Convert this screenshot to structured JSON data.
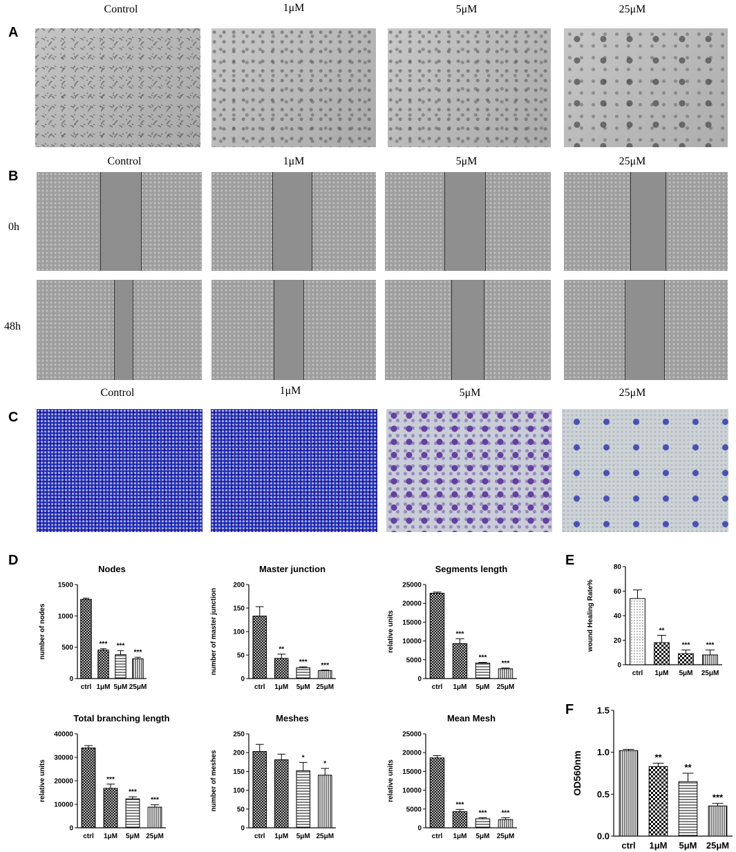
{
  "panels": {
    "A": {
      "letter": "A",
      "columns": [
        "Control",
        "1μM",
        "5μM",
        "25μM"
      ]
    },
    "B": {
      "letter": "B",
      "columns": [
        "Control",
        "1μM",
        "5μM",
        "25μM"
      ],
      "rows": [
        "0h",
        "48h"
      ]
    },
    "C": {
      "letter": "C",
      "columns": [
        "Control",
        "1μM",
        "5μM",
        "25μM"
      ]
    },
    "D": {
      "letter": "D"
    },
    "E": {
      "letter": "E"
    },
    "F": {
      "letter": "F"
    }
  },
  "chart_data": [
    {
      "id": "nodes",
      "type": "bar",
      "title": "Nodes",
      "ylabel": "number of nodes",
      "categories": [
        "ctrl",
        "1μM",
        "5μM",
        "25μM"
      ],
      "values": [
        1265,
        455,
        380,
        315
      ],
      "errors": [
        18,
        22,
        65,
        25
      ],
      "significance": [
        "",
        "***",
        "***",
        "***"
      ],
      "ylim": [
        0,
        1500
      ],
      "yticks": [
        0,
        500,
        1000,
        1500
      ]
    },
    {
      "id": "master-junction",
      "type": "bar",
      "title": "Master junction",
      "ylabel": "number of master junction",
      "categories": [
        "ctrl",
        "1μM",
        "5μM",
        "25μM"
      ],
      "values": [
        133,
        43,
        23,
        17
      ],
      "errors": [
        20,
        9,
        2,
        1
      ],
      "significance": [
        "",
        "**",
        "***",
        "***"
      ],
      "ylim": [
        0,
        200
      ],
      "yticks": [
        0,
        50,
        100,
        150,
        200
      ]
    },
    {
      "id": "segments-length",
      "type": "bar",
      "title": "Segments length",
      "ylabel": "relative units",
      "categories": [
        "ctrl",
        "1μM",
        "5μM",
        "25μM"
      ],
      "values": [
        22700,
        9300,
        4100,
        2600
      ],
      "errors": [
        300,
        1300,
        200,
        200
      ],
      "significance": [
        "",
        "***",
        "***",
        "***"
      ],
      "ylim": [
        0,
        25000
      ],
      "yticks": [
        0,
        5000,
        10000,
        15000,
        20000,
        25000
      ]
    },
    {
      "id": "total-branching-length",
      "type": "bar",
      "title": "Total branching length",
      "ylabel": "relative units",
      "categories": [
        "ctrl",
        "1μM",
        "5μM",
        "25μM"
      ],
      "values": [
        34000,
        16800,
        12300,
        8800
      ],
      "errors": [
        1000,
        1800,
        900,
        1000
      ],
      "significance": [
        "",
        "***",
        "***",
        "***"
      ],
      "ylim": [
        0,
        40000
      ],
      "yticks": [
        0,
        10000,
        20000,
        30000,
        40000
      ]
    },
    {
      "id": "meshes",
      "type": "bar",
      "title": "Meshes",
      "ylabel": "number of meshes",
      "categories": [
        "ctrl",
        "1μM",
        "5μM",
        "25μM"
      ],
      "values": [
        203,
        181,
        152,
        140
      ],
      "errors": [
        19,
        15,
        22,
        18
      ],
      "significance": [
        "",
        "",
        "*",
        "*"
      ],
      "ylim": [
        0,
        250
      ],
      "yticks": [
        0,
        50,
        100,
        150,
        200,
        250
      ]
    },
    {
      "id": "mean-mesh",
      "type": "bar",
      "title": "Mean Mesh",
      "ylabel": "relative units",
      "categories": [
        "ctrl",
        "1μM",
        "5μM",
        "25μM"
      ],
      "values": [
        18600,
        4300,
        2400,
        2200
      ],
      "errors": [
        600,
        600,
        300,
        500
      ],
      "significance": [
        "",
        "***",
        "***",
        "***"
      ],
      "ylim": [
        0,
        25000
      ],
      "yticks": [
        0,
        5000,
        10000,
        15000,
        20000,
        25000
      ]
    },
    {
      "id": "wound-healing",
      "type": "bar",
      "title": "",
      "ylabel": "wound Healing Rate%",
      "categories": [
        "ctrl",
        "1μM",
        "5μM",
        "25μM"
      ],
      "values": [
        54,
        18,
        9,
        8
      ],
      "errors": [
        7,
        6,
        3,
        4
      ],
      "significance": [
        "",
        "**",
        "***",
        "***"
      ],
      "ylim": [
        0,
        80
      ],
      "yticks": [
        0,
        20,
        40,
        60,
        80
      ]
    },
    {
      "id": "od560",
      "type": "bar",
      "title": "",
      "ylabel": "OD560nm",
      "categories": [
        "ctrl",
        "1μM",
        "5μM",
        "25μM"
      ],
      "values": [
        1.02,
        0.83,
        0.65,
        0.36
      ],
      "errors": [
        0.015,
        0.04,
        0.1,
        0.03
      ],
      "significance": [
        "",
        "**",
        "**",
        "***"
      ],
      "ylim": [
        0,
        1.5
      ],
      "yticks": [
        0.0,
        0.5,
        1.0,
        1.5
      ],
      "tick_decimals": 1
    }
  ]
}
